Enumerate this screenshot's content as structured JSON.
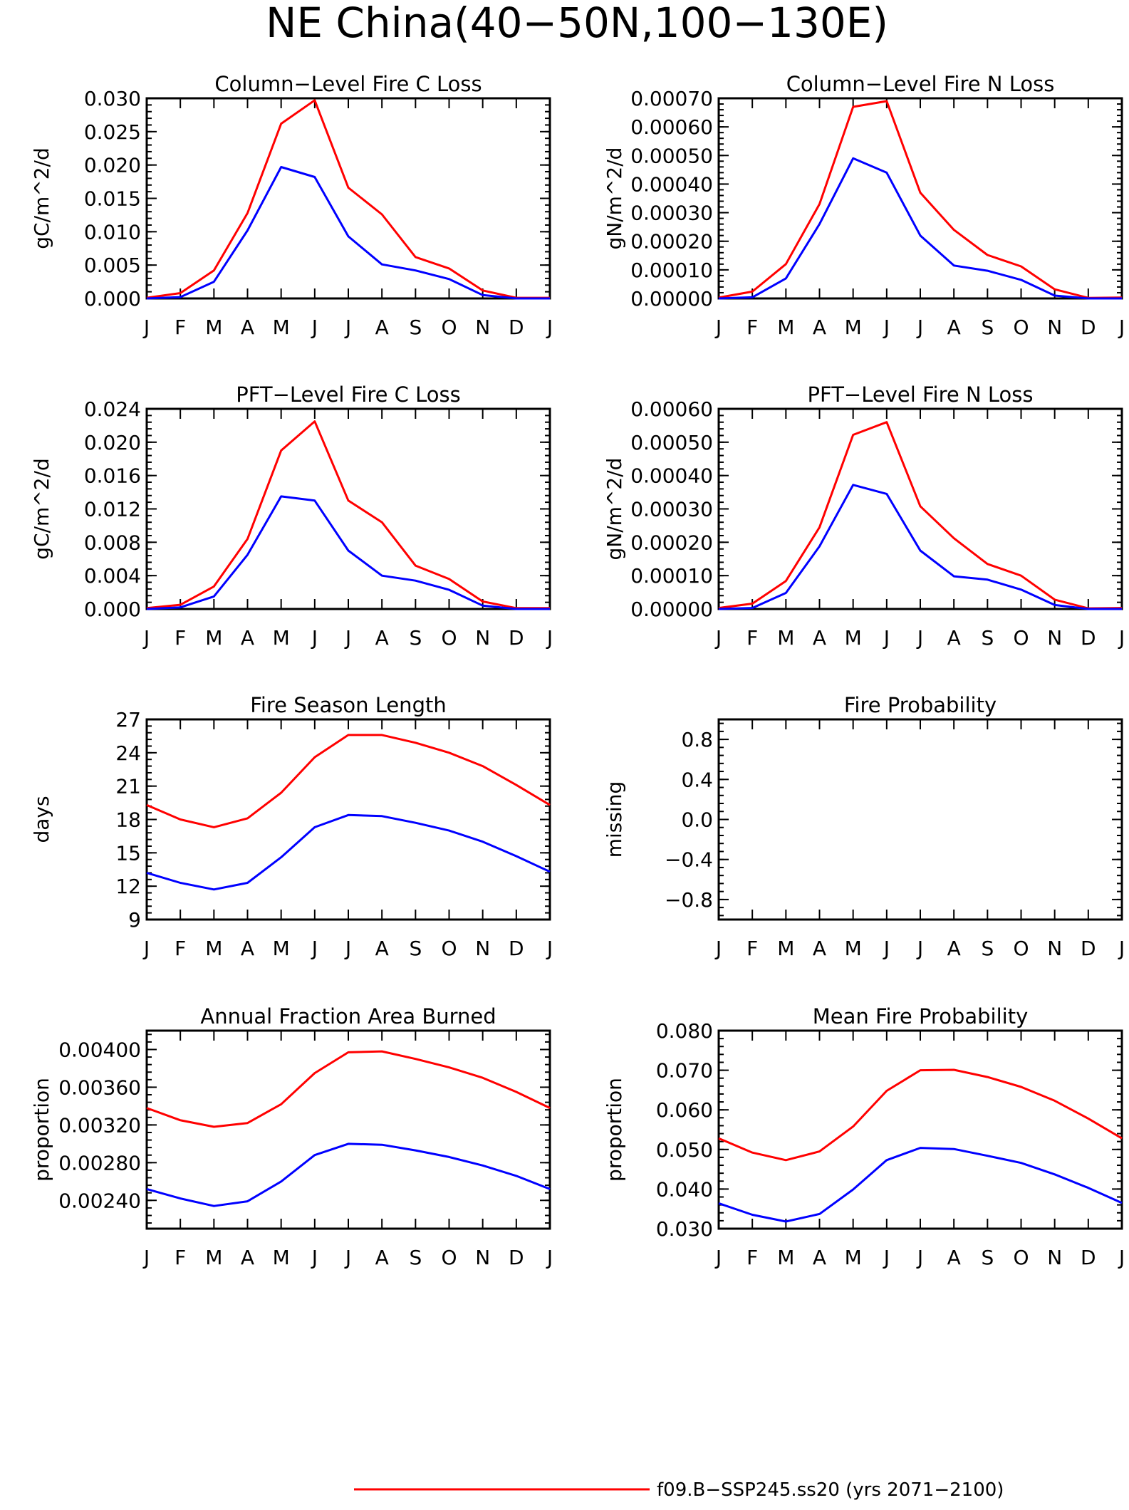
{
  "figure": {
    "title": "NE China(40−50N,100−130E)",
    "legend": [
      {
        "label": "f09.B−SSP245.ss20 (yrs 2071−2100)",
        "color": "#ff0000"
      }
    ]
  },
  "chart_data": [
    {
      "type": "line",
      "title": "Column−Level Fire C Loss",
      "ylabel": "gC/m^2/d",
      "categories": [
        "J",
        "F",
        "M",
        "A",
        "M",
        "J",
        "J",
        "A",
        "S",
        "O",
        "N",
        "D",
        "J"
      ],
      "ylim": [
        0,
        0.03
      ],
      "yticks": [
        "0.000",
        "0.005",
        "0.010",
        "0.015",
        "0.020",
        "0.025",
        "0.030"
      ],
      "ytick_values": [
        0,
        0.005,
        0.01,
        0.015,
        0.02,
        0.025,
        0.03
      ],
      "series": [
        {
          "color": "#ff0000",
          "values": [
            0.0001,
            0.0008,
            0.0042,
            0.0128,
            0.0262,
            0.0297,
            0.0166,
            0.0126,
            0.0062,
            0.0045,
            0.0012,
            0.0001,
            0.0001
          ]
        },
        {
          "color": "#0000ff",
          "values": [
            0.0,
            0.0002,
            0.0025,
            0.0102,
            0.0197,
            0.0182,
            0.0093,
            0.0051,
            0.0042,
            0.0029,
            0.0005,
            0.0,
            0.0
          ]
        }
      ]
    },
    {
      "type": "line",
      "title": "Column−Level Fire N Loss",
      "ylabel": "gN/m^2/d",
      "categories": [
        "J",
        "F",
        "M",
        "A",
        "M",
        "J",
        "J",
        "A",
        "S",
        "O",
        "N",
        "D",
        "J"
      ],
      "ylim": [
        0,
        0.0007
      ],
      "yticks": [
        "0.00000",
        "0.00010",
        "0.00020",
        "0.00030",
        "0.00040",
        "0.00050",
        "0.00060",
        "0.00070"
      ],
      "ytick_values": [
        0,
        0.0001,
        0.0002,
        0.0003,
        0.0004,
        0.0005,
        0.0006,
        0.0007
      ],
      "series": [
        {
          "color": "#ff0000",
          "values": [
            3e-06,
            2.4e-05,
            0.00012,
            0.00033,
            0.00067,
            0.00069,
            0.00037,
            0.00024,
            0.000152,
            0.000112,
            3.2e-05,
            2e-06,
            3e-06
          ]
        },
        {
          "color": "#0000ff",
          "values": [
            0.0,
            4e-06,
            7e-05,
            0.00026,
            0.00049,
            0.00044,
            0.00022,
            0.000115,
            9.7e-05,
            6.5e-05,
            1e-05,
            0.0,
            0.0
          ]
        }
      ]
    },
    {
      "type": "line",
      "title": "PFT−Level Fire C Loss",
      "ylabel": "gC/m^2/d",
      "categories": [
        "J",
        "F",
        "M",
        "A",
        "M",
        "J",
        "J",
        "A",
        "S",
        "O",
        "N",
        "D",
        "J"
      ],
      "ylim": [
        0,
        0.024
      ],
      "yticks": [
        "0.000",
        "0.004",
        "0.008",
        "0.012",
        "0.016",
        "0.020",
        "0.024"
      ],
      "ytick_values": [
        0,
        0.004,
        0.008,
        0.012,
        0.016,
        0.02,
        0.024
      ],
      "series": [
        {
          "color": "#ff0000",
          "values": [
            0.0001,
            0.0005,
            0.0027,
            0.0084,
            0.019,
            0.0225,
            0.013,
            0.0104,
            0.0052,
            0.0036,
            0.0009,
            0.0001,
            0.0001
          ]
        },
        {
          "color": "#0000ff",
          "values": [
            0.0,
            0.0002,
            0.0015,
            0.0065,
            0.0135,
            0.013,
            0.007,
            0.004,
            0.0034,
            0.0023,
            0.0004,
            0.0,
            0.0
          ]
        }
      ]
    },
    {
      "type": "line",
      "title": "PFT−Level Fire N Loss",
      "ylabel": "gN/m^2/d",
      "categories": [
        "J",
        "F",
        "M",
        "A",
        "M",
        "J",
        "J",
        "A",
        "S",
        "O",
        "N",
        "D",
        "J"
      ],
      "ylim": [
        0,
        0.0006
      ],
      "yticks": [
        "0.00000",
        "0.00010",
        "0.00020",
        "0.00030",
        "0.00040",
        "0.00050",
        "0.00060"
      ],
      "ytick_values": [
        0,
        0.0001,
        0.0002,
        0.0003,
        0.0004,
        0.0005,
        0.0006
      ],
      "series": [
        {
          "color": "#ff0000",
          "values": [
            3e-06,
            1.6e-05,
            8.4e-05,
            0.000245,
            0.000522,
            0.00056,
            0.000308,
            0.000212,
            0.000135,
            0.0001,
            2.8e-05,
            2e-06,
            3e-06
          ]
        },
        {
          "color": "#0000ff",
          "values": [
            0.0,
            3e-06,
            4.8e-05,
            0.000188,
            0.000372,
            0.000345,
            0.000175,
            9.8e-05,
            8.8e-05,
            5.8e-05,
            1.2e-05,
            0.0,
            0.0
          ]
        }
      ]
    },
    {
      "type": "line",
      "title": "Fire Season Length",
      "ylabel": "days",
      "categories": [
        "J",
        "F",
        "M",
        "A",
        "M",
        "J",
        "J",
        "A",
        "S",
        "O",
        "N",
        "D",
        "J"
      ],
      "ylim": [
        9,
        27
      ],
      "yticks": [
        "9",
        "12",
        "15",
        "18",
        "21",
        "24",
        "27"
      ],
      "ytick_values": [
        9,
        12,
        15,
        18,
        21,
        24,
        27
      ],
      "series": [
        {
          "color": "#ff0000",
          "values": [
            19.3,
            18.0,
            17.3,
            18.1,
            20.4,
            23.6,
            25.6,
            25.6,
            24.9,
            24.0,
            22.8,
            21.1,
            19.3
          ]
        },
        {
          "color": "#0000ff",
          "values": [
            13.2,
            12.3,
            11.7,
            12.3,
            14.6,
            17.3,
            18.4,
            18.3,
            17.7,
            17.0,
            16.0,
            14.7,
            13.3
          ]
        }
      ]
    },
    {
      "type": "line",
      "title": "Fire Probability",
      "ylabel": "missing",
      "categories": [
        "J",
        "F",
        "M",
        "A",
        "M",
        "J",
        "J",
        "A",
        "S",
        "O",
        "N",
        "D",
        "J"
      ],
      "ylim": [
        -1.0,
        1.0
      ],
      "yticks": [
        "−0.8",
        "−0.4",
        "0.0",
        "0.4",
        "0.8"
      ],
      "ytick_values": [
        -0.8,
        -0.4,
        0.0,
        0.4,
        0.8
      ],
      "series": []
    },
    {
      "type": "line",
      "title": "Annual Fraction Area Burned",
      "ylabel": "proportion",
      "categories": [
        "J",
        "F",
        "M",
        "A",
        "M",
        "J",
        "J",
        "A",
        "S",
        "O",
        "N",
        "D",
        "J"
      ],
      "ylim": [
        0.0021,
        0.0042
      ],
      "yticks": [
        "0.00240",
        "0.00280",
        "0.00320",
        "0.00360",
        "0.00400"
      ],
      "ytick_values": [
        0.0024,
        0.0028,
        0.0032,
        0.0036,
        0.004
      ],
      "series": [
        {
          "color": "#ff0000",
          "values": [
            0.00338,
            0.00325,
            0.00318,
            0.00322,
            0.00342,
            0.00375,
            0.00397,
            0.00398,
            0.0039,
            0.00381,
            0.0037,
            0.00355,
            0.00338
          ]
        },
        {
          "color": "#0000ff",
          "values": [
            0.00252,
            0.00242,
            0.00234,
            0.00239,
            0.0026,
            0.00288,
            0.003,
            0.00299,
            0.00293,
            0.00286,
            0.00277,
            0.00266,
            0.00252
          ]
        }
      ]
    },
    {
      "type": "line",
      "title": "Mean Fire Probability",
      "ylabel": "proportion",
      "categories": [
        "J",
        "F",
        "M",
        "A",
        "M",
        "J",
        "J",
        "A",
        "S",
        "O",
        "N",
        "D",
        "J"
      ],
      "ylim": [
        0.03,
        0.08
      ],
      "yticks": [
        "0.030",
        "0.040",
        "0.050",
        "0.060",
        "0.070",
        "0.080"
      ],
      "ytick_values": [
        0.03,
        0.04,
        0.05,
        0.06,
        0.07,
        0.08
      ],
      "series": [
        {
          "color": "#ff0000",
          "values": [
            0.0528,
            0.0492,
            0.0473,
            0.0495,
            0.0558,
            0.0648,
            0.07,
            0.0701,
            0.0683,
            0.0658,
            0.0623,
            0.0578,
            0.0528
          ]
        },
        {
          "color": "#0000ff",
          "values": [
            0.0364,
            0.0335,
            0.0318,
            0.0337,
            0.0399,
            0.0473,
            0.0504,
            0.0501,
            0.0484,
            0.0466,
            0.0437,
            0.0403,
            0.0365
          ]
        }
      ]
    }
  ]
}
